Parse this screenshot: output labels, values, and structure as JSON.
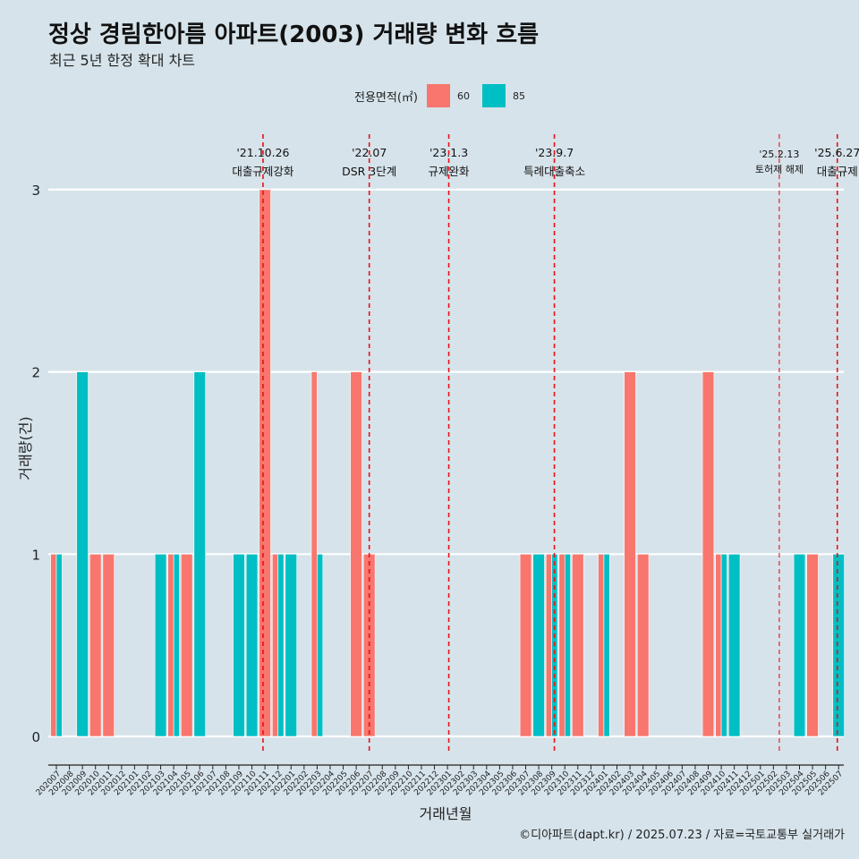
{
  "title": "정상 경림한아름 아파트(2003) 거래량 변화 흐름",
  "subtitle": "최근 5년 한정 확대 차트",
  "legend": {
    "title": "전용면적(㎡)",
    "items": [
      {
        "label": "60",
        "color": "#f8766d"
      },
      {
        "label": "85",
        "color": "#00bfc4"
      }
    ]
  },
  "caption": "©디아파트(dapt.kr) / 2025.07.23 / 자료=국토교통부 실거래가",
  "chart_data": {
    "type": "bar",
    "xlabel": "거래년월",
    "ylabel": "거래량(건)",
    "ylim": [
      0,
      3
    ],
    "yticks": [
      0,
      1,
      2,
      3
    ],
    "categories": [
      "202007",
      "202008",
      "202009",
      "202010",
      "202011",
      "202012",
      "202101",
      "202102",
      "202103",
      "202104",
      "202105",
      "202106",
      "202107",
      "202108",
      "202109",
      "202110",
      "202111",
      "202112",
      "202201",
      "202202",
      "202203",
      "202204",
      "202205",
      "202206",
      "202207",
      "202208",
      "202209",
      "202210",
      "202211",
      "202212",
      "202301",
      "202302",
      "202303",
      "202304",
      "202305",
      "202306",
      "202307",
      "202308",
      "202309",
      "202310",
      "202311",
      "202312",
      "202401",
      "202402",
      "202403",
      "202404",
      "202405",
      "202406",
      "202407",
      "202408",
      "202409",
      "202410",
      "202411",
      "202412",
      "202501",
      "202502",
      "202503",
      "202504",
      "202505",
      "202506",
      "202507"
    ],
    "series": [
      {
        "name": "60",
        "color": "#f8766d",
        "values": [
          1,
          0,
          0,
          1,
          1,
          0,
          0,
          0,
          0,
          1,
          1,
          0,
          0,
          0,
          0,
          0,
          3,
          1,
          0,
          0,
          2,
          0,
          0,
          2,
          1,
          0,
          0,
          0,
          0,
          0,
          0,
          0,
          0,
          0,
          0,
          0,
          1,
          0,
          1,
          1,
          1,
          0,
          1,
          0,
          2,
          1,
          0,
          0,
          0,
          0,
          2,
          1,
          0,
          0,
          0,
          0,
          0,
          0,
          1,
          0,
          0
        ]
      },
      {
        "name": "85",
        "color": "#00bfc4",
        "values": [
          1,
          0,
          2,
          0,
          0,
          0,
          0,
          0,
          1,
          1,
          0,
          2,
          0,
          0,
          1,
          1,
          0,
          1,
          1,
          0,
          1,
          0,
          0,
          0,
          0,
          0,
          0,
          0,
          0,
          0,
          0,
          0,
          0,
          0,
          0,
          0,
          0,
          1,
          1,
          1,
          0,
          0,
          1,
          0,
          0,
          0,
          0,
          0,
          0,
          0,
          0,
          1,
          1,
          0,
          0,
          0,
          0,
          1,
          0,
          0,
          1
        ]
      }
    ],
    "events": [
      {
        "date": "'21.10.26",
        "label": "대출규제강화",
        "month": "202110",
        "offset": 0.85,
        "small": false
      },
      {
        "date": "'22.07",
        "label": "DSR 3단계",
        "month": "202207",
        "offset": 0.0,
        "small": false
      },
      {
        "date": "'23.1.3",
        "label": "규제완화",
        "month": "202301",
        "offset": 0.1,
        "small": false
      },
      {
        "date": "'23.9.7",
        "label": "특례대출축소",
        "month": "202309",
        "offset": 0.2,
        "small": false
      },
      {
        "date": "'25.2.13",
        "label": "토허제 해제",
        "month": "202502",
        "offset": 0.45,
        "small": true
      },
      {
        "date": "'25.6.27",
        "label": "대출규제",
        "month": "202506",
        "offset": 0.9,
        "small": false
      }
    ],
    "grid": true
  }
}
